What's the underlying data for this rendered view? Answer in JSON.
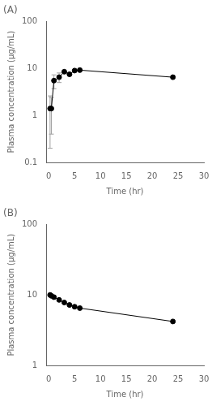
{
  "chart_data": [
    {
      "type": "line",
      "title": "(A)",
      "x_label": "Time (hr)",
      "y_label": "Plasma concentration (μg/mL)",
      "x": [
        0.25,
        0.5,
        1,
        2,
        3,
        4,
        5,
        6,
        24
      ],
      "series": [
        {
          "color": "#000000",
          "marker": "circle",
          "values": [
            1.4,
            1.4,
            5.5,
            6.5,
            8.5,
            7.5,
            9.0,
            9.2,
            6.5
          ],
          "error": {
            "color": "#a0a0a0",
            "values": [
              1.2,
              1.0,
              1.8,
              1.5,
              null,
              null,
              null,
              null,
              null
            ]
          }
        }
      ],
      "log": "y",
      "grid": false,
      "xlim": [
        -0.5,
        30
      ],
      "xticks": [
        0,
        5,
        10,
        15,
        20,
        25,
        30
      ],
      "ylim": [
        0.1,
        100
      ],
      "yticks": [
        0.1,
        1,
        10,
        100
      ]
    },
    {
      "type": "line",
      "title": "(B)",
      "x_label": "Time (hr)",
      "y_label": "Plasma concentration (μg/mL)",
      "x": [
        0.25,
        0.5,
        1,
        2,
        3,
        4,
        5,
        6,
        24
      ],
      "series": [
        {
          "color": "#000000",
          "marker": "circle",
          "values": [
            10.0,
            9.7,
            9.3,
            8.5,
            7.8,
            7.2,
            6.8,
            6.5,
            4.2
          ]
        }
      ],
      "log": "y",
      "grid": false,
      "xlim": [
        -0.5,
        30
      ],
      "xticks": [
        0,
        5,
        10,
        15,
        20,
        25,
        30
      ],
      "ylim": [
        1,
        100
      ],
      "yticks": [
        1,
        10,
        100
      ]
    }
  ]
}
